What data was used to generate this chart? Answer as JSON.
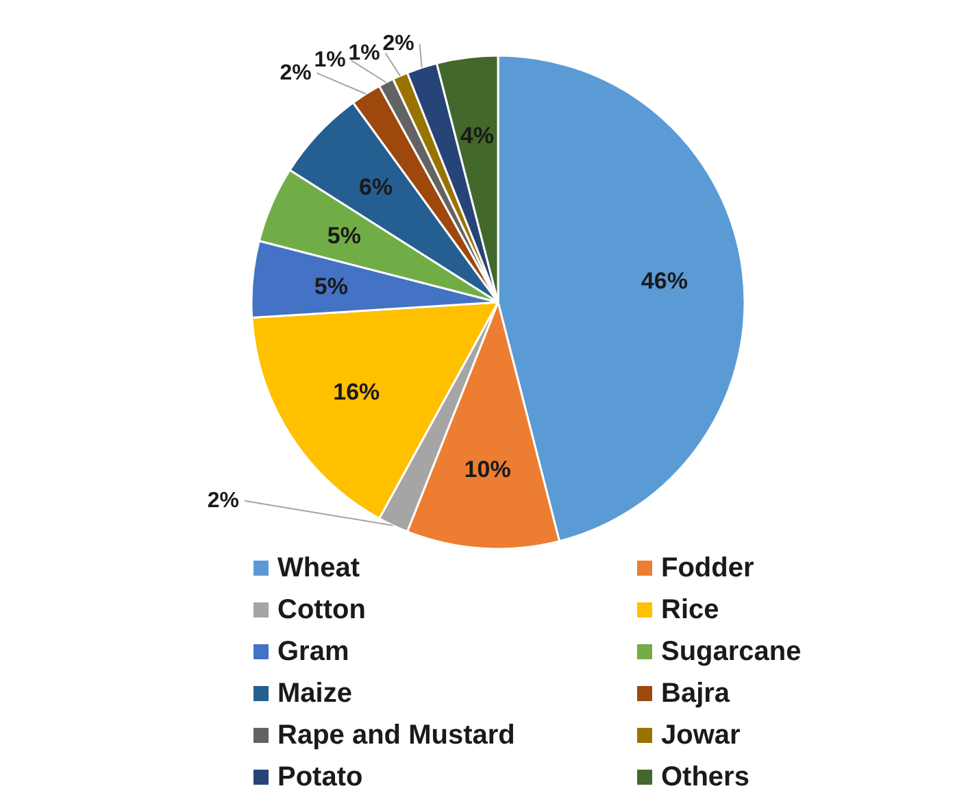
{
  "chart_data": {
    "type": "pie",
    "categories": [
      "Wheat",
      "Fodder",
      "Cotton",
      "Rice",
      "Gram",
      "Sugarcane",
      "Maize",
      "Bajra",
      "Rape and Mustard",
      "Jowar",
      "Potato",
      "Others"
    ],
    "values": [
      46,
      10,
      2,
      16,
      5,
      5,
      6,
      2,
      1,
      1,
      2,
      4
    ],
    "colors": [
      "#5b9bd5",
      "#ed7d31",
      "#a5a5a5",
      "#ffc000",
      "#4472c4",
      "#70ad47",
      "#255e91",
      "#9e480e",
      "#636363",
      "#997300",
      "#264478",
      "#43682b"
    ],
    "value_labels": [
      "46%",
      "10%",
      "2%",
      "16%",
      "5%",
      "5%",
      "6%",
      "2%",
      "1%",
      "1%",
      "2%",
      "4%"
    ],
    "legend": "bottom"
  }
}
